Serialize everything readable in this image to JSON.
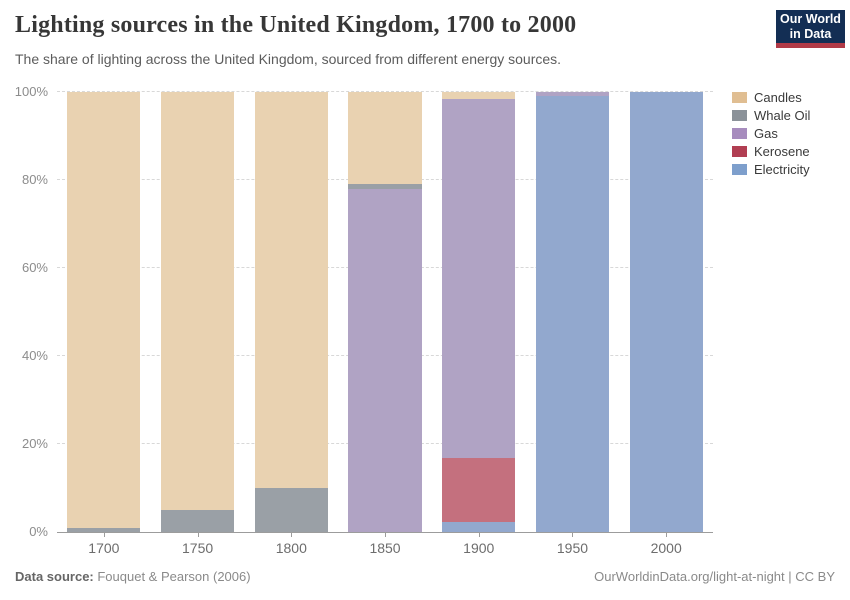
{
  "header": {
    "title": "Lighting sources in the United Kingdom, 1700 to 2000",
    "subtitle": "The share of lighting across the United Kingdom, sourced from different energy sources.",
    "logo": {
      "line1": "Our World",
      "line2": "in Data",
      "bg_color": "#132E54",
      "accent_color": "#B13A47"
    }
  },
  "chart_data": {
    "type": "bar",
    "stacked": true,
    "unit": "%",
    "title": "Lighting sources in the United Kingdom, 1700 to 2000",
    "categories": [
      "1700",
      "1750",
      "1800",
      "1850",
      "1900",
      "1950",
      "2000"
    ],
    "series": [
      {
        "name": "Candles",
        "color": "#E0BE92",
        "bar_color": "#E9D2B1",
        "values": [
          99,
          95,
          90,
          21,
          1.6,
          0,
          0
        ]
      },
      {
        "name": "Whale Oil",
        "color": "#8B9299",
        "bar_color": "#9AA0A6",
        "values": [
          1,
          5,
          10,
          1,
          0,
          0,
          0
        ]
      },
      {
        "name": "Gas",
        "color": "#A78CBE",
        "bar_color": "#B0A3C4",
        "values": [
          0,
          0,
          0,
          78,
          81.6,
          1,
          0
        ]
      },
      {
        "name": "Kerosene",
        "color": "#B13E52",
        "bar_color": "#C4707E",
        "values": [
          0,
          0,
          0,
          0,
          14.5,
          0,
          0
        ]
      },
      {
        "name": "Electricity",
        "color": "#7E9FCC",
        "bar_color": "#92A8CE",
        "values": [
          0,
          0,
          0,
          0,
          2.3,
          99,
          100
        ]
      }
    ],
    "stack_order_bottom_to_top": [
      "Electricity",
      "Kerosene",
      "Gas",
      "Whale Oil",
      "Candles"
    ],
    "yticks": [
      0,
      20,
      40,
      60,
      80,
      100
    ],
    "ylim": [
      0,
      100
    ],
    "ytick_suffix": "%",
    "grid": "horizontal-dashed",
    "legend_position": "right"
  },
  "footer": {
    "datasource_label": "Data source:",
    "datasource_value": " Fouquet & Pearson (2006)",
    "link": "OurWorldinData.org/light-at-night",
    "separator": " | ",
    "license": "CC BY"
  }
}
